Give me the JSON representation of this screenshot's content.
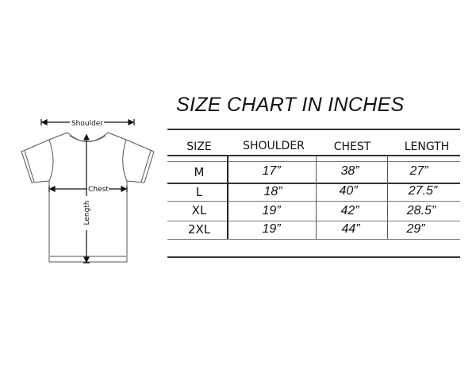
{
  "title": "SIZE CHART IN INCHES",
  "diagram": {
    "shoulder_label": "Shoulder",
    "chest_label": "Chest",
    "length_label": "Length"
  },
  "table": {
    "headers": [
      "SIZE",
      "SHOULDER",
      "CHEST",
      "LENGTH"
    ],
    "rows": [
      [
        "M",
        "17”",
        "38”",
        "27”"
      ],
      [
        "L",
        "18”",
        "40”",
        "27.5”"
      ],
      [
        "XL",
        "19”",
        "42”",
        "28.5”"
      ],
      [
        "2XL",
        "19”",
        "44”",
        "29”"
      ]
    ]
  }
}
